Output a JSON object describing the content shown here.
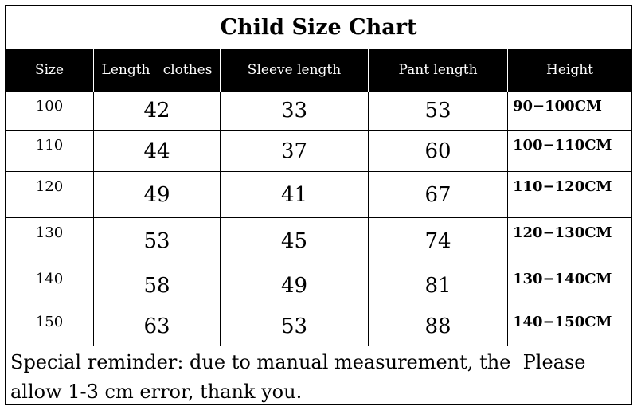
{
  "title": "Child Size Chart",
  "headers": [
    "Size",
    "Length   clothes",
    "Sleeve length",
    "Pant length",
    "Height"
  ],
  "rows": [
    {
      "size": "100",
      "length": "42",
      "sleeve": "33",
      "pant": "53",
      "height": "90−100CM"
    },
    {
      "size": "110",
      "length": "44",
      "sleeve": "37",
      "pant": "60",
      "height": "100−110CM"
    },
    {
      "size": "120",
      "length": "49",
      "sleeve": "41",
      "pant": "67",
      "height": "110−120CM"
    },
    {
      "size": "130",
      "length": "53",
      "sleeve": "45",
      "pant": "74",
      "height": "120−130CM"
    },
    {
      "size": "140",
      "length": "58",
      "sleeve": "49",
      "pant": "81",
      "height": "130−140CM"
    },
    {
      "size": "150",
      "length": "63",
      "sleeve": "53",
      "pant": "88",
      "height": "140−150CM"
    }
  ],
  "note": {
    "line1": "Special reminder: due to manual measurement, the  Please",
    "line2": "allow 1-3 cm error, thank you."
  }
}
